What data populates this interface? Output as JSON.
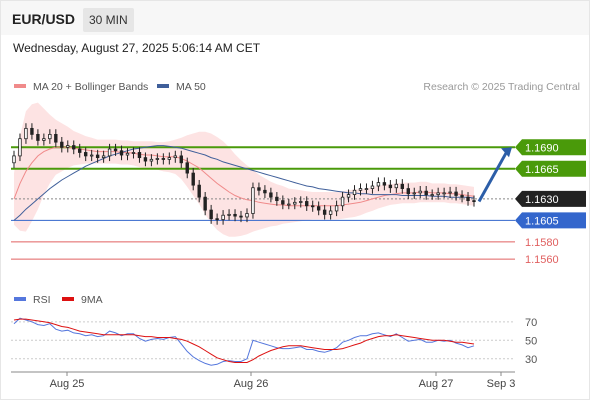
{
  "header": {
    "symbol": "EUR/USD",
    "timeframe": "30 MIN"
  },
  "datetime": "Wednesday, August 27, 2025 5:06:14 AM CET",
  "colors": {
    "bollinger_fill": "#fde3e3",
    "bollinger_line": "#f08a8a",
    "ma50": "#3f5f9a",
    "green_level": "#4a9a0a",
    "blue_level": "#3366cc",
    "red_level": "#e06060",
    "rsi": "#5577dd",
    "rsi_ma": "#dd1111",
    "candle": "#222222",
    "arrow": "#2c5ea8"
  },
  "chart_data": [
    {
      "type": "candlestick",
      "name": "price",
      "legend": [
        {
          "name": "MA 20 + Bollinger Bands",
          "color": "#f08a8a"
        },
        {
          "name": "MA 50",
          "color": "#3f5f9a"
        }
      ],
      "watermark": "Research © 2025 Trading Central",
      "y_range": [
        1.1545,
        1.1745
      ],
      "x_labels": [
        "Aug 25",
        "Aug 26",
        "Aug 27",
        "Sep 3"
      ],
      "levels": [
        {
          "value": 1.169,
          "label": "1.1690",
          "kind": "resistance",
          "color": "#4a9a0a"
        },
        {
          "value": 1.1665,
          "label": "1.1665",
          "kind": "resistance",
          "color": "#4a9a0a"
        },
        {
          "value": 1.163,
          "label": "1.1630",
          "kind": "pivot",
          "color": "#222222"
        },
        {
          "value": 1.1605,
          "label": "1.1605",
          "kind": "support",
          "color": "#3366cc"
        },
        {
          "value": 1.158,
          "label": "1.1580",
          "kind": "support",
          "color": "#e06060"
        },
        {
          "value": 1.156,
          "label": "1.1560",
          "kind": "support",
          "color": "#e06060"
        }
      ],
      "close": [
        1.168,
        1.17,
        1.1712,
        1.1705,
        1.1698,
        1.17,
        1.1705,
        1.1696,
        1.169,
        1.1692,
        1.1688,
        1.1684,
        1.168,
        1.1681,
        1.1678,
        1.168,
        1.1688,
        1.1686,
        1.1681,
        1.1683,
        1.1684,
        1.1678,
        1.1674,
        1.1676,
        1.1677,
        1.1676,
        1.1678,
        1.168,
        1.1672,
        1.166,
        1.1646,
        1.1632,
        1.1617,
        1.1607,
        1.1606,
        1.1611,
        1.1612,
        1.161,
        1.1609,
        1.1613,
        1.1643,
        1.164,
        1.1637,
        1.1632,
        1.1628,
        1.1624,
        1.1624,
        1.1626,
        1.1627,
        1.1622,
        1.1621,
        1.1617,
        1.1612,
        1.1616,
        1.1622,
        1.1632,
        1.1635,
        1.164,
        1.1642,
        1.1642,
        1.1645,
        1.1649,
        1.1646,
        1.1643,
        1.1647,
        1.1642,
        1.1636,
        1.1637,
        1.1639,
        1.1635,
        1.1635,
        1.1637,
        1.1637,
        1.1638,
        1.1634,
        1.1632,
        1.1628,
        1.1627
      ],
      "ma20": [
        1.163,
        1.1648,
        1.1662,
        1.1672,
        1.168,
        1.1685,
        1.1688,
        1.169,
        1.169,
        1.169,
        1.1689,
        1.1688,
        1.1687,
        1.1686,
        1.1685,
        1.1685,
        1.1685,
        1.1685,
        1.1684,
        1.1684,
        1.1683,
        1.1682,
        1.1681,
        1.1681,
        1.168,
        1.1679,
        1.1679,
        1.1679,
        1.1677,
        1.1674,
        1.167,
        1.1666,
        1.166,
        1.1654,
        1.1648,
        1.1643,
        1.1638,
        1.1634,
        1.1631,
        1.1629,
        1.1628,
        1.1626,
        1.1625,
        1.1624,
        1.1623,
        1.1623,
        1.1622,
        1.1622,
        1.1622,
        1.1622,
        1.1622,
        1.1622,
        1.1622,
        1.1622,
        1.1622,
        1.1623,
        1.1624,
        1.1625,
        1.1626,
        1.1628,
        1.163,
        1.1632,
        1.1634,
        1.1635,
        1.1636,
        1.1637,
        1.1637,
        1.1637,
        1.1638,
        1.1638,
        1.1637,
        1.1637,
        1.1637,
        1.1636,
        1.1636,
        1.1635,
        1.1634,
        1.1633
      ],
      "ma50": [
        1.1605,
        1.1611,
        1.1618,
        1.1624,
        1.163,
        1.1636,
        1.1642,
        1.1647,
        1.1652,
        1.1656,
        1.166,
        1.1664,
        1.1668,
        1.1671,
        1.1674,
        1.1677,
        1.168,
        1.1682,
        1.1684,
        1.1686,
        1.1688,
        1.1689,
        1.169,
        1.1691,
        1.1692,
        1.1692,
        1.1691,
        1.169,
        1.1689,
        1.1687,
        1.1685,
        1.1683,
        1.1681,
        1.1678,
        1.1676,
        1.1673,
        1.1671,
        1.1669,
        1.1667,
        1.1665,
        1.1663,
        1.1661,
        1.1659,
        1.1657,
        1.1655,
        1.1653,
        1.1651,
        1.1649,
        1.1647,
        1.1645,
        1.1644,
        1.1642,
        1.1641,
        1.164,
        1.1639,
        1.1638,
        1.1637,
        1.1637,
        1.1636,
        1.1636,
        1.1635,
        1.1635,
        1.1635,
        1.1635,
        1.1635,
        1.1634,
        1.1634,
        1.1634,
        1.1634,
        1.1634,
        1.1633,
        1.1633,
        1.1633,
        1.1632,
        1.1632,
        1.1632,
        1.1632,
        1.1631
      ],
      "bb_width": [
        0.003,
        0.0055,
        0.007,
        0.0068,
        0.0062,
        0.005,
        0.004,
        0.0032,
        0.0028,
        0.0024,
        0.002,
        0.0018,
        0.0016,
        0.0015,
        0.0014,
        0.0014,
        0.0014,
        0.0014,
        0.0014,
        0.0014,
        0.0014,
        0.0015,
        0.0016,
        0.0016,
        0.0016,
        0.0017,
        0.0018,
        0.002,
        0.0024,
        0.003,
        0.0036,
        0.0042,
        0.0048,
        0.0052,
        0.0054,
        0.0054,
        0.0052,
        0.0048,
        0.0044,
        0.004,
        0.0036,
        0.0032,
        0.0029,
        0.0026,
        0.0024,
        0.0022,
        0.002,
        0.0019,
        0.0018,
        0.0017,
        0.0016,
        0.0016,
        0.0016,
        0.0016,
        0.0016,
        0.0016,
        0.0016,
        0.0016,
        0.0015,
        0.0014,
        0.0014,
        0.0013,
        0.0013,
        0.0012,
        0.0012,
        0.0012,
        0.0012,
        0.0012,
        0.0012,
        0.0012,
        0.0011,
        0.0011,
        0.0011,
        0.0011,
        0.0011,
        0.0011,
        0.0011,
        0.0011
      ],
      "forecast": {
        "from": 1.1627,
        "to": 1.169
      }
    },
    {
      "type": "line",
      "name": "rsi",
      "legend": [
        {
          "name": "RSI",
          "color": "#5577dd"
        },
        {
          "name": "9MA",
          "color": "#dd1111"
        }
      ],
      "y_range": [
        20,
        85
      ],
      "y_ticks": [
        70,
        50,
        30
      ],
      "rsi": [
        68,
        74,
        72,
        70,
        67,
        66,
        68,
        62,
        60,
        61,
        58,
        57,
        55,
        56,
        54,
        55,
        60,
        58,
        55,
        57,
        57,
        52,
        49,
        51,
        52,
        51,
        53,
        54,
        46,
        38,
        32,
        28,
        25,
        23,
        24,
        27,
        28,
        27,
        27,
        30,
        50,
        48,
        46,
        44,
        42,
        41,
        41,
        42,
        43,
        40,
        40,
        38,
        37,
        39,
        42,
        48,
        50,
        53,
        55,
        55,
        57,
        58,
        56,
        54,
        57,
        53,
        49,
        50,
        51,
        48,
        48,
        50,
        49,
        50,
        47,
        45,
        42,
        44
      ],
      "rsi_ma": [
        72,
        73,
        73,
        72,
        71,
        70,
        69,
        67,
        65,
        64,
        62,
        60,
        59,
        58,
        57,
        56,
        56,
        56,
        56,
        56,
        56,
        55,
        54,
        54,
        53,
        53,
        53,
        52,
        51,
        49,
        46,
        43,
        39,
        35,
        31,
        29,
        27,
        26,
        26,
        26,
        29,
        33,
        36,
        39,
        41,
        43,
        44,
        44,
        44,
        43,
        42,
        41,
        40,
        40,
        40,
        41,
        43,
        45,
        47,
        50,
        52,
        54,
        55,
        55,
        56,
        55,
        54,
        53,
        52,
        51,
        50,
        50,
        50,
        49,
        48,
        48,
        47,
        46
      ]
    }
  ]
}
